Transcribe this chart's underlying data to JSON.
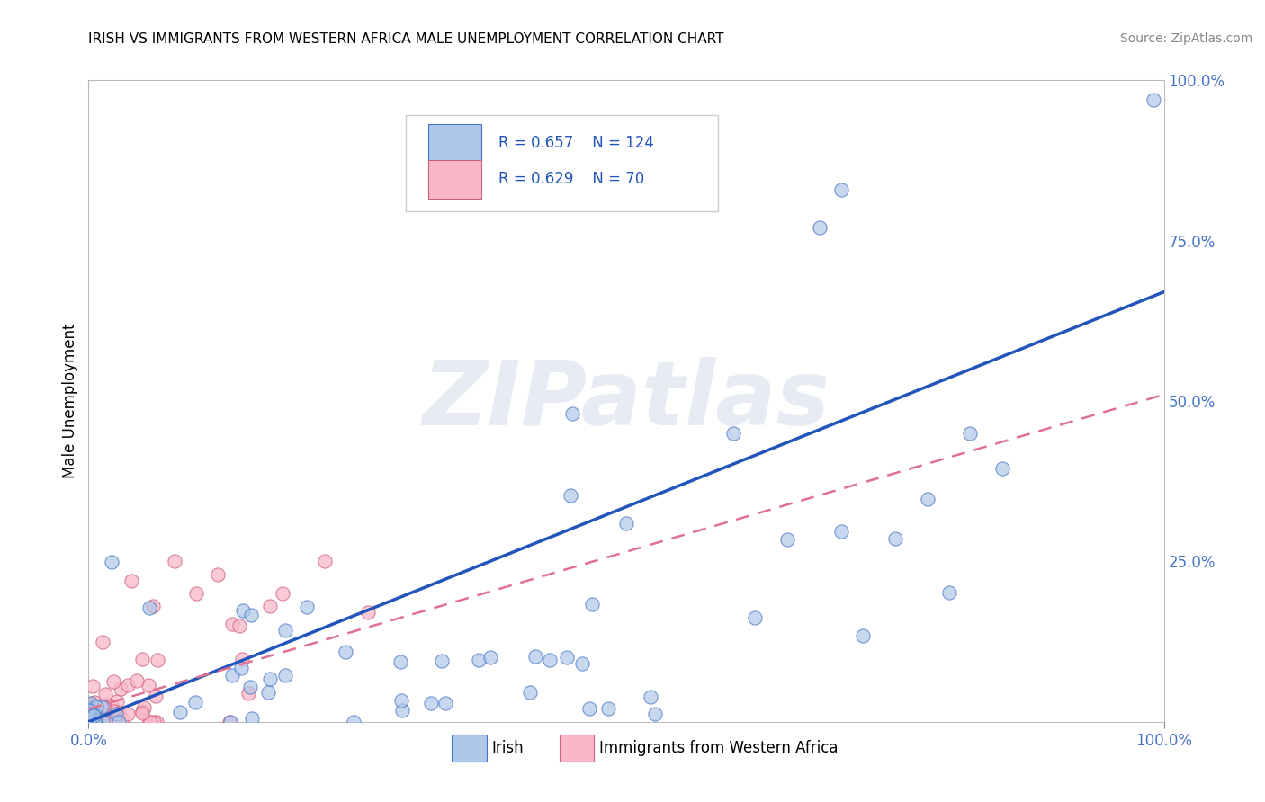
{
  "title": "IRISH VS IMMIGRANTS FROM WESTERN AFRICA MALE UNEMPLOYMENT CORRELATION CHART",
  "source": "Source: ZipAtlas.com",
  "ylabel": "Male Unemployment",
  "right_yticks": [
    "100.0%",
    "75.0%",
    "50.0%",
    "25.0%"
  ],
  "right_ytick_vals": [
    1.0,
    0.75,
    0.5,
    0.25
  ],
  "legend_irish_R": "0.657",
  "legend_irish_N": "124",
  "legend_wa_R": "0.629",
  "legend_wa_N": "70",
  "irish_fill_color": "#aec6e8",
  "irish_edge_color": "#4472C4",
  "wa_fill_color": "#f8b8c8",
  "wa_edge_color": "#d06080",
  "irish_line_color": "#2255bb",
  "wa_line_color": "#e07090",
  "watermark": "ZIPatlas",
  "background_color": "#ffffff",
  "grid_color": "#bbbbbb",
  "n_irish": 124,
  "n_wa": 70,
  "irish_seed": 17,
  "wa_seed": 99,
  "irish_line_intercept": 0.0,
  "irish_line_slope": 0.67,
  "wa_line_intercept": 0.02,
  "wa_line_slope": 0.49
}
